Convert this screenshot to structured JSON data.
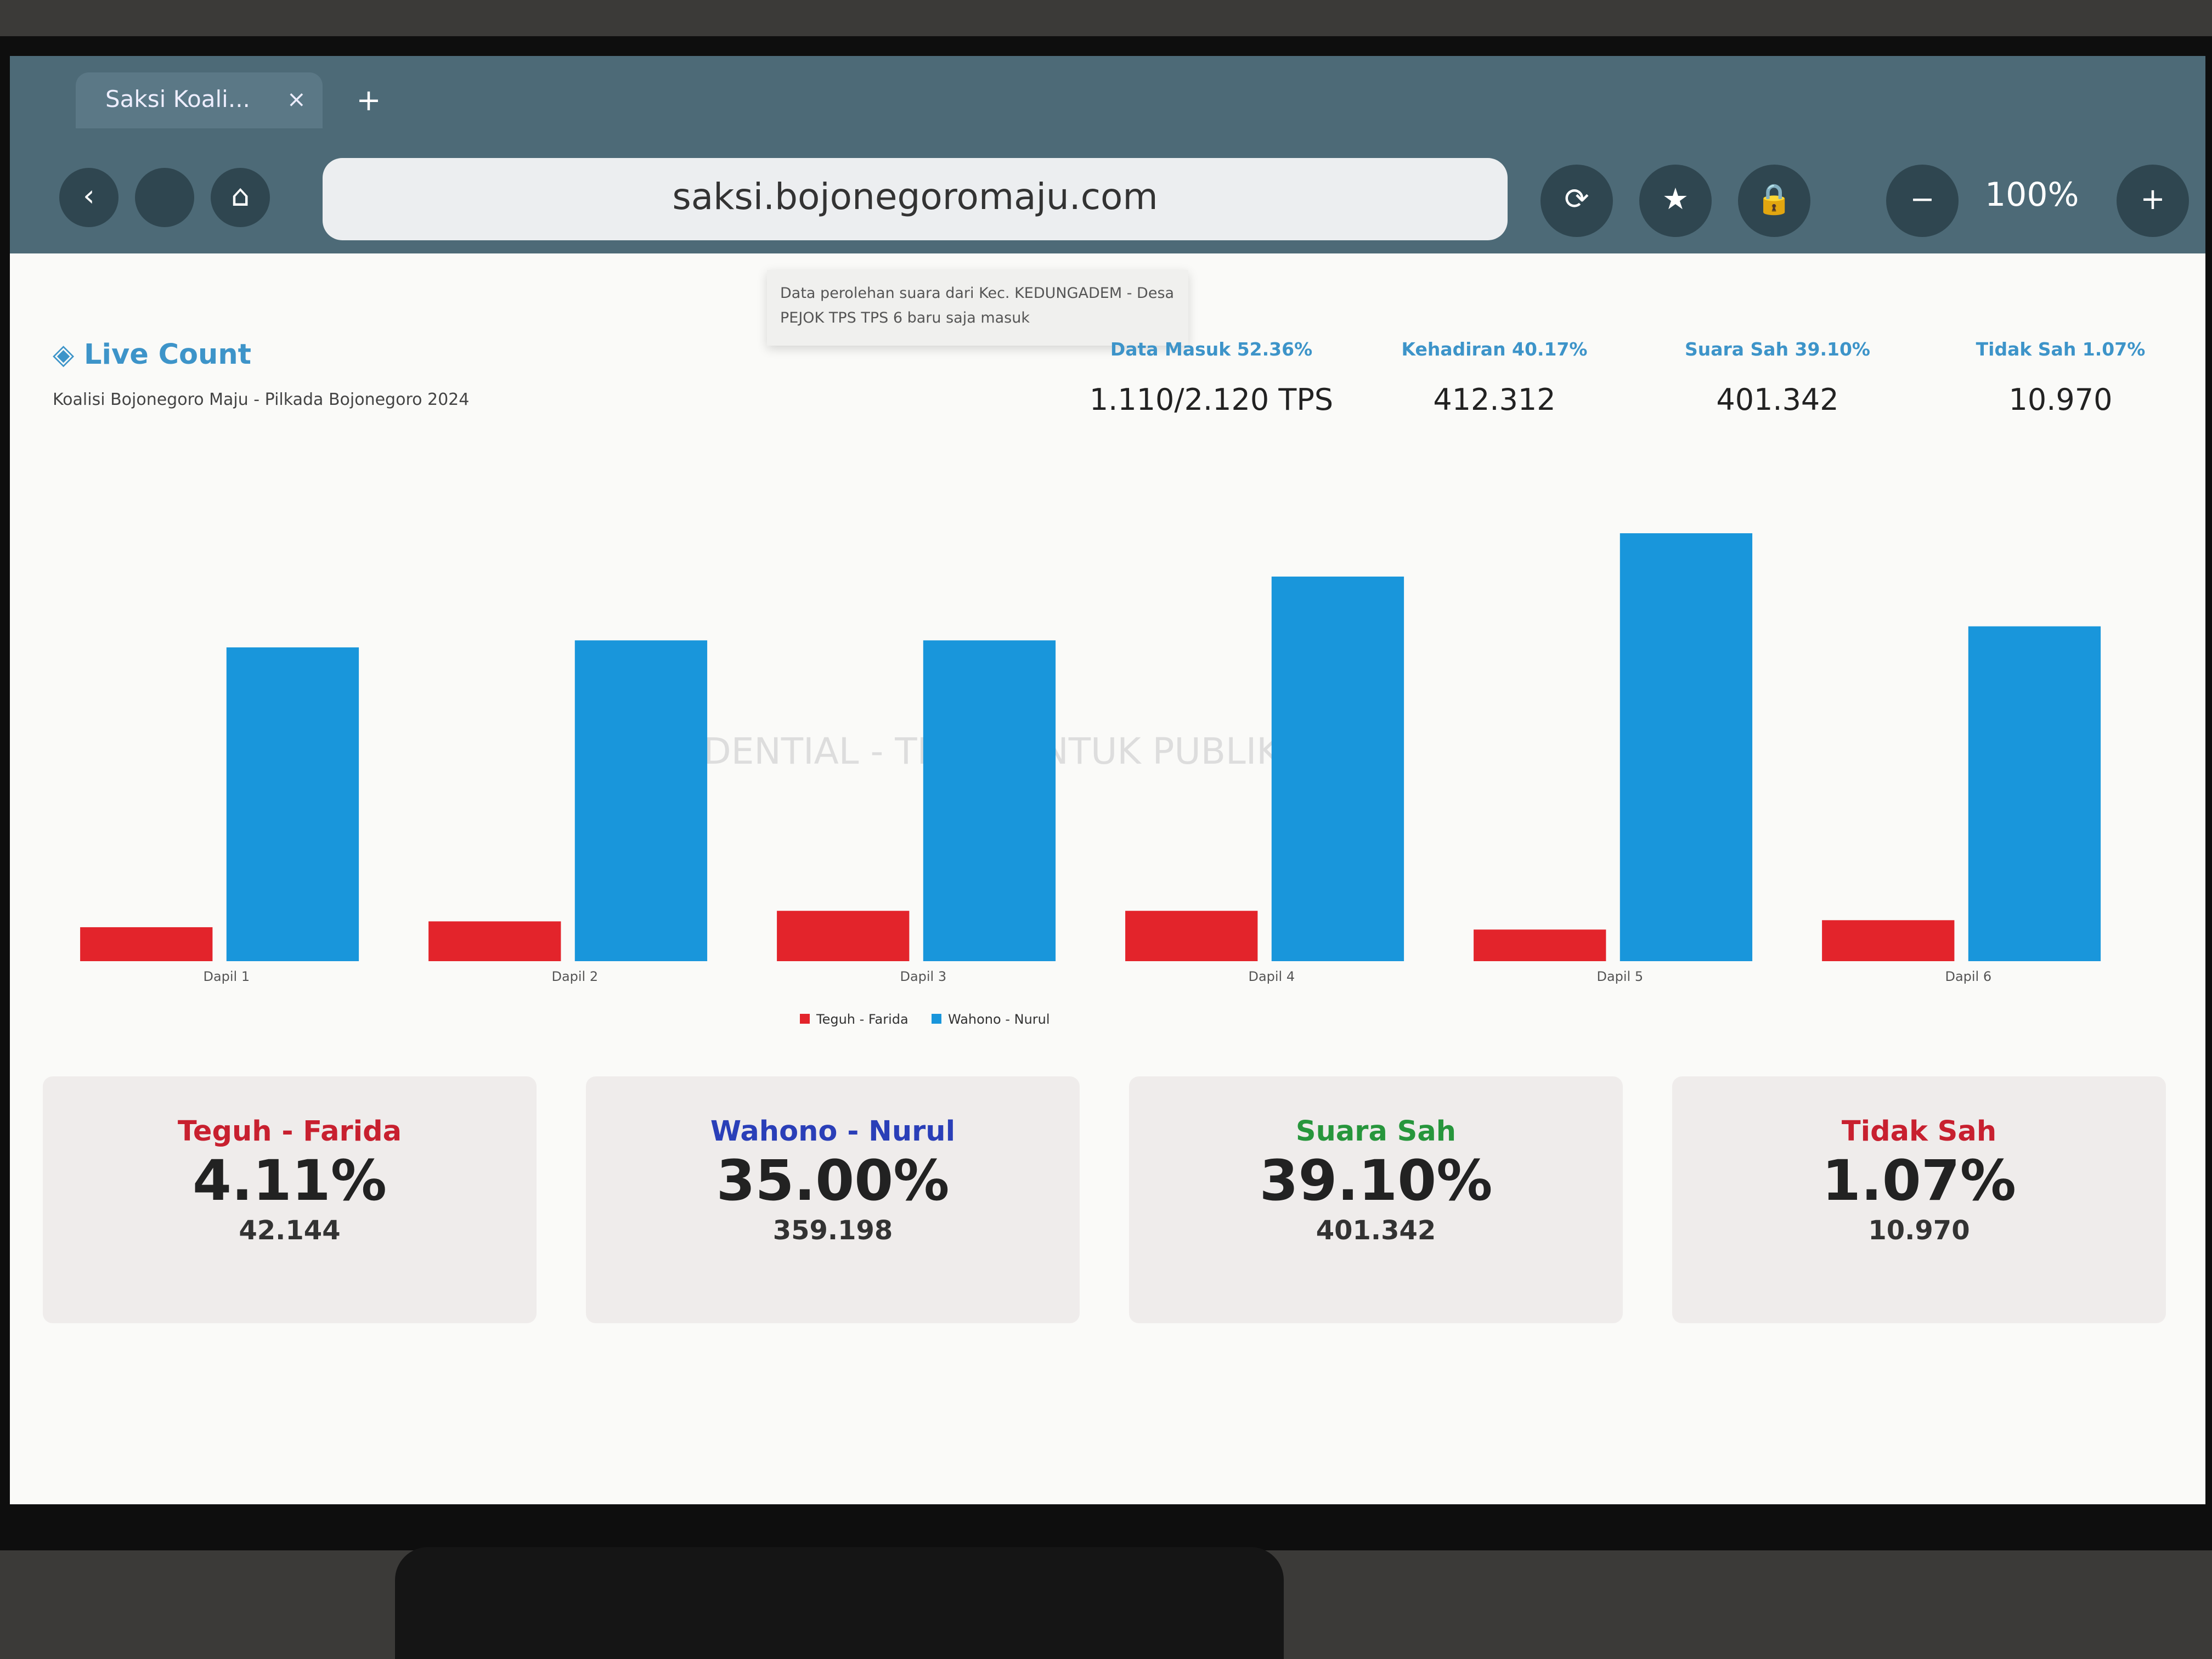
{
  "browser": {
    "tab_title": "Saksi Koali...",
    "url": "saksi.bojonegoromaju.com",
    "zoom": "100%"
  },
  "notification": "Data perolehan suara dari Kec. KEDUNGADEM - Desa PEJOK TPS TPS 6 baru saja masuk",
  "header": {
    "title": "Live Count",
    "subtitle": "Koalisi Bojonegoro Maju - Pilkada Bojonegoro 2024"
  },
  "stats": [
    {
      "label": "Data Masuk 52.36%",
      "value": "1.110/2.120 TPS"
    },
    {
      "label": "Kehadiran 40.17%",
      "value": "412.312"
    },
    {
      "label": "Suara Sah 39.10%",
      "value": "401.342"
    },
    {
      "label": "Tidak Sah 1.07%",
      "value": "10.970"
    }
  ],
  "watermark": "CONFIDENTIAL - TIDAK UNTUK PUBLIKASI",
  "chart_data": {
    "type": "bar",
    "categories": [
      "Dapil 1",
      "Dapil 2",
      "Dapil 3",
      "Dapil 4",
      "Dapil 5",
      "Dapil 6"
    ],
    "series": [
      {
        "name": "Teguh - Farida",
        "color": "#e3242b",
        "values": [
          5800,
          6800,
          8600,
          8600,
          5400,
          7000
        ]
      },
      {
        "name": "Wahono - Nurul",
        "color": "#1996db",
        "values": [
          53600,
          54800,
          54800,
          65700,
          73100,
          57200
        ]
      }
    ],
    "legend": "bottom"
  },
  "cards": [
    {
      "label": "Teguh - Farida",
      "color": "#c8202f",
      "percent": "4.11%",
      "count": "42.144"
    },
    {
      "label": "Wahono - Nurul",
      "color": "#2a3fb8",
      "percent": "35.00%",
      "count": "359.198"
    },
    {
      "label": "Suara Sah",
      "color": "#27963c",
      "percent": "39.10%",
      "count": "401.342"
    },
    {
      "label": "Tidak Sah",
      "color": "#c8202f",
      "percent": "1.07%",
      "count": "10.970"
    }
  ]
}
